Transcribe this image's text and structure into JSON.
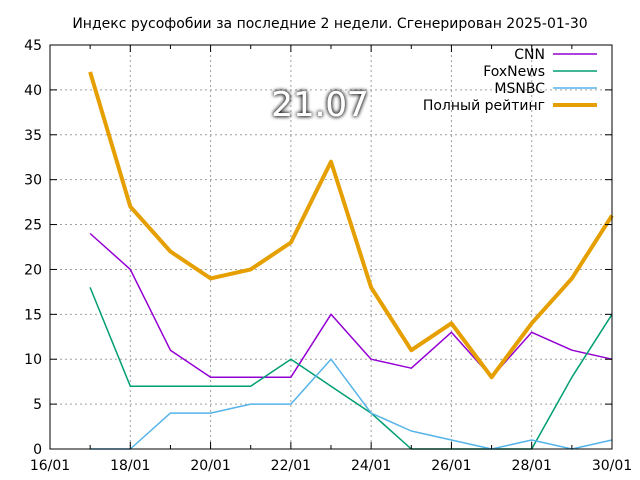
{
  "chart_data": {
    "type": "line",
    "title": "Индекс русофобии за последние 2 недели. Сгенерирован 2025-01-30",
    "big_value": "21.07",
    "xlim": [
      "2025-01-16",
      "2025-01-30"
    ],
    "ylim": [
      0,
      45
    ],
    "x_ticks": [
      {
        "date": "2025-01-16",
        "label": "16/01"
      },
      {
        "date": "2025-01-18",
        "label": "18/01"
      },
      {
        "date": "2025-01-20",
        "label": "20/01"
      },
      {
        "date": "2025-01-22",
        "label": "22/01"
      },
      {
        "date": "2025-01-24",
        "label": "24/01"
      },
      {
        "date": "2025-01-26",
        "label": "26/01"
      },
      {
        "date": "2025-01-28",
        "label": "28/01"
      },
      {
        "date": "2025-01-30",
        "label": "30/01"
      }
    ],
    "y_ticks": [
      0,
      5,
      10,
      15,
      20,
      25,
      30,
      35,
      40,
      45
    ],
    "grid": true,
    "legend_position": "top-right",
    "x": [
      "2025-01-17",
      "2025-01-18",
      "2025-01-19",
      "2025-01-20",
      "2025-01-21",
      "2025-01-22",
      "2025-01-23",
      "2025-01-24",
      "2025-01-25",
      "2025-01-26",
      "2025-01-27",
      "2025-01-28",
      "2025-01-29",
      "2025-01-30"
    ],
    "series": [
      {
        "name": "CNN",
        "color": "#9400d3",
        "values": [
          24,
          20,
          11,
          8,
          8,
          8,
          15,
          10,
          9,
          13,
          8,
          13,
          11,
          10
        ]
      },
      {
        "name": "FoxNews",
        "color": "#009e73",
        "values": [
          18,
          7,
          7,
          7,
          7,
          10,
          7,
          4,
          0,
          0,
          0,
          0,
          8,
          15
        ]
      },
      {
        "name": "MSNBC",
        "color": "#56b4e9",
        "values": [
          0,
          0,
          4,
          4,
          5,
          5,
          10,
          4,
          2,
          1,
          0,
          1,
          0,
          1
        ]
      },
      {
        "name": "Полный рейтинг",
        "color": "#e69f00",
        "values": [
          42,
          27,
          22,
          19,
          20,
          23,
          32,
          18,
          11,
          14,
          8,
          14,
          19,
          26
        ]
      }
    ]
  }
}
